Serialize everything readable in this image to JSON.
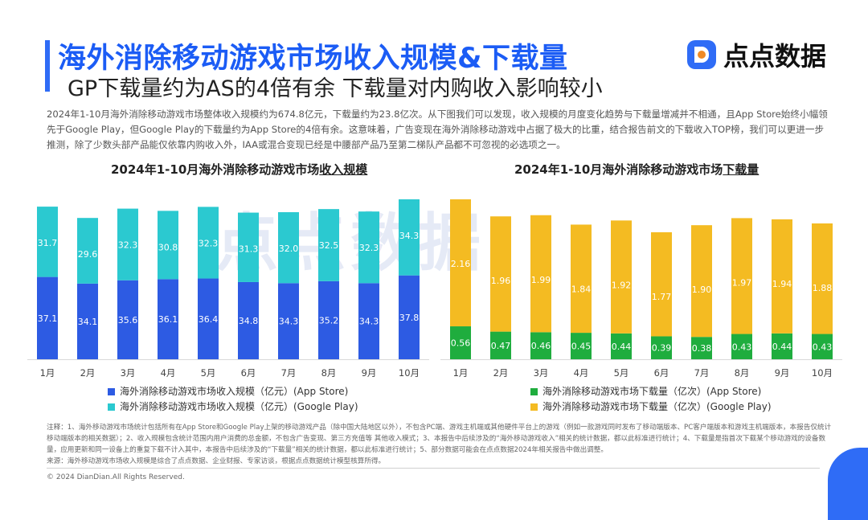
{
  "header": {
    "title": "海外消除移动游戏市场收入规模&下载量",
    "subtitle": "GP下载量约为AS的4倍有余 下载量对内购收入影响较小",
    "logo_text": "点点数据"
  },
  "intro": "2024年1-10月海外消除移动游戏市场整体收入规模约为674.8亿元，下载量约为23.8亿次。从下图我们可以发现，收入规模的月度变化趋势与下载量增减并不相通，且App Store始终小幅领先于Google Play，但Google Play的下载量约为App Store的4倍有余。这意味着，广告变现在海外消除移动游戏中占据了极大的比重，结合报告前文的下载收入TOP榜，我们可以更进一步推测，除了少数头部产品能仅依靠内购收入外，IAA或混合变现已经是中腰部产品乃至第二梯队产品都不可忽视的必选项之一。",
  "watermark": "点点数据",
  "chart_data": [
    {
      "type": "bar",
      "stacked": true,
      "title_prefix": "2024年1-10月海外消除移动游戏市场",
      "title_underlined": "收入规模",
      "categories": [
        "1月",
        "2月",
        "3月",
        "4月",
        "5月",
        "6月",
        "7月",
        "8月",
        "9月",
        "10月"
      ],
      "series": [
        {
          "name": "海外消除移动游戏市场收入规模（亿元）(App Store)",
          "color": "#2d5be3",
          "values": [
            37.1,
            34.1,
            35.6,
            36.1,
            36.4,
            34.8,
            34.3,
            35.2,
            34.3,
            37.8
          ]
        },
        {
          "name": "海外消除移动游戏市场收入规模（亿元）(Google Play)",
          "color": "#2bc9d0",
          "values": [
            31.7,
            29.6,
            32.3,
            30.8,
            32.3,
            31.3,
            32.0,
            32.5,
            32.3,
            34.3
          ]
        }
      ],
      "legend_position": "bottom",
      "grid": false
    },
    {
      "type": "bar",
      "stacked": true,
      "title_prefix": "2024年1-10月海外消除移动游戏市场",
      "title_underlined": "下载量",
      "categories": [
        "1月",
        "2月",
        "3月",
        "4月",
        "5月",
        "6月",
        "7月",
        "8月",
        "9月",
        "10月"
      ],
      "series": [
        {
          "name": "海外消除移动游戏市场下载量（亿次）(App Store)",
          "color": "#1fad3e",
          "values": [
            0.56,
            0.47,
            0.46,
            0.45,
            0.44,
            0.39,
            0.38,
            0.43,
            0.44,
            0.43
          ]
        },
        {
          "name": "海外消除移动游戏市场下载量（亿次）(Google Play)",
          "color": "#f4bb22",
          "values": [
            2.16,
            1.96,
            1.99,
            1.84,
            1.92,
            1.77,
            1.9,
            1.97,
            1.94,
            1.88
          ]
        }
      ],
      "legend_position": "bottom",
      "grid": false
    }
  ],
  "notes": "注释：1、海外移动游戏市场统计包括所有在App Store和Google Play上架的移动游戏产品（除中国大陆地区以外），不包含PC端、游戏主机端或其他硬件平台上的游戏（例如一款游戏同时发布了移动端版本、PC客户端版本和游戏主机端版本，本报告仅统计移动端版本的相关数据）；2、收入规模包含统计范围内用户消费的总金额，不包含广告变现、第三方充值等 其他收入模式；3、本报告中后续涉及的“海外移动游戏收入”相关的统计数据，都以此标准进行统计；4、下载量是指首次下载某个移动游戏的设备数量，应用更新和同一设备上的重复下载不计入其中，本报告中后续涉及的“下载量”相关的统计数据，都以此标准进行统计；5、部分数据可能会在点点数据2024年相关报告中做出调整。",
  "source": "来源：海外移动游戏市场收入规模是综合了点点数据、企业财报、专家访谈，根据点点数据统计模型核算所得。",
  "copyright": "© 2024 DianDian.All Rights Reserved."
}
